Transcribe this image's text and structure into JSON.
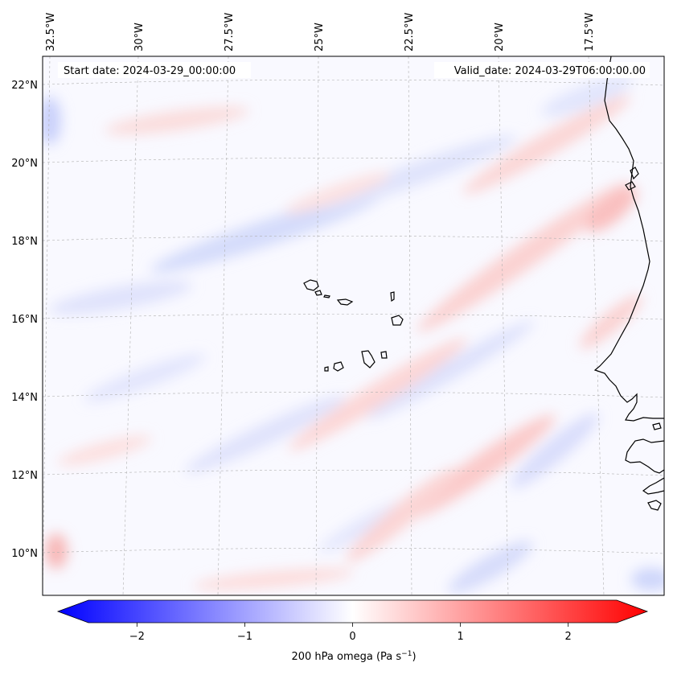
{
  "header": {
    "start_date": "Start date: 2024-03-29_00:00:00",
    "valid_date": "Valid_date: 2024-03-29T06:00:00.00"
  },
  "longitude_labels": [
    "32.5°W",
    "30°W",
    "27.5°W",
    "25°W",
    "22.5°W",
    "20°W",
    "17.5°W"
  ],
  "latitude_labels": [
    "22°N",
    "20°N",
    "18°N",
    "16°N",
    "14°N",
    "12°N",
    "10°N"
  ],
  "colorbar": {
    "label": "200 hPa omega (Pa s",
    "label_sup": "−1",
    "label_end": ")",
    "min": -2.75,
    "max": 2.75,
    "ticks": [
      "−2",
      "−1",
      "0",
      "1",
      "2"
    ],
    "tick_values": [
      -2,
      -1,
      0,
      1,
      2
    ],
    "colormap": "bwr",
    "color_low": "#0000ff",
    "color_mid": "#ffffff",
    "color_high": "#ff0000"
  },
  "map": {
    "variable": "200 hPa omega",
    "gridline_color": "#b0b0b0",
    "coastline_color": "#000000"
  }
}
